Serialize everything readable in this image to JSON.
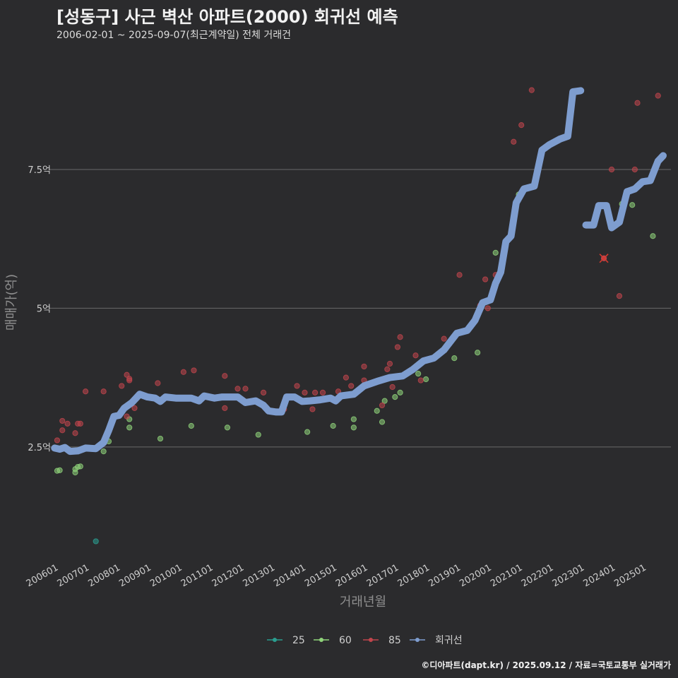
{
  "title": "[성동구] 사근 벽산 아파트(2000) 회귀선 예측",
  "subtitle": "2006-02-01 ~ 2025-09-07(최근계약일) 전체 거래건",
  "footer": "©디아파트(dapt.kr) / 2025.09.12 / 자료=국토교통부 실거래가",
  "colors": {
    "background": "#2b2b2d",
    "grid": "#6a6a6a",
    "s25": "#2a9d8f",
    "s60": "#8fd37a",
    "s85": "#c0454c",
    "regression": "#7e9dcf"
  },
  "chart_data": {
    "type": "scatter",
    "xlabel": "거래년월",
    "ylabel": "매매가(억)",
    "x_range": [
      "2005-11",
      "2025-12"
    ],
    "ylim": [
      0.5,
      9.6
    ],
    "grid": "horizontal",
    "legend_position": "bottom",
    "x_ticks": [
      "200601",
      "200701",
      "200801",
      "200901",
      "201001",
      "201101",
      "201201",
      "201301",
      "201401",
      "201501",
      "201601",
      "201701",
      "201801",
      "201901",
      "202001",
      "202101",
      "202201",
      "202301",
      "202401",
      "202501"
    ],
    "y_ticks": [
      {
        "value": 2.5,
        "label": "2.5억"
      },
      {
        "value": 5,
        "label": "5억"
      },
      {
        "value": 7.5,
        "label": "7.5억"
      }
    ],
    "legend": [
      {
        "key": "s25",
        "label": "25"
      },
      {
        "key": "s60",
        "label": "60"
      },
      {
        "key": "s85",
        "label": "85"
      },
      {
        "key": "regression",
        "label": "회귀선"
      }
    ],
    "series": [
      {
        "name": "25",
        "key": "s25",
        "points": [
          [
            "2007-05",
            0.8
          ]
        ]
      },
      {
        "name": "60",
        "key": "s60",
        "points": [
          [
            "2006-02",
            2.07
          ],
          [
            "2006-03",
            2.08
          ],
          [
            "2006-09",
            2.04
          ],
          [
            "2006-09",
            2.1
          ],
          [
            "2006-10",
            2.14
          ],
          [
            "2006-11",
            2.15
          ],
          [
            "2007-08",
            2.42
          ],
          [
            "2007-10",
            2.6
          ],
          [
            "2008-06",
            2.85
          ],
          [
            "2008-06",
            3.0
          ],
          [
            "2009-06",
            2.65
          ],
          [
            "2010-06",
            2.88
          ],
          [
            "2011-08",
            2.85
          ],
          [
            "2012-08",
            2.72
          ],
          [
            "2014-03",
            2.77
          ],
          [
            "2015-01",
            2.88
          ],
          [
            "2015-09",
            2.85
          ],
          [
            "2015-09",
            3.0
          ],
          [
            "2016-06",
            3.15
          ],
          [
            "2016-08",
            2.95
          ],
          [
            "2016-09",
            3.33
          ],
          [
            "2017-01",
            3.4
          ],
          [
            "2017-03",
            3.48
          ],
          [
            "2017-10",
            3.82
          ],
          [
            "2018-01",
            3.72
          ],
          [
            "2018-12",
            4.1
          ],
          [
            "2019-08",
            4.78
          ],
          [
            "2019-09",
            4.2
          ],
          [
            "2020-04",
            6.0
          ],
          [
            "2021-01",
            7.05
          ],
          [
            "2024-05",
            6.88
          ],
          [
            "2024-09",
            6.86
          ],
          [
            "2025-05",
            6.3
          ]
        ]
      },
      {
        "name": "85",
        "key": "s85",
        "points": [
          [
            "2006-02",
            2.62
          ],
          [
            "2006-04",
            2.8
          ],
          [
            "2006-04",
            2.97
          ],
          [
            "2006-06",
            2.92
          ],
          [
            "2006-09",
            2.75
          ],
          [
            "2006-10",
            2.92
          ],
          [
            "2006-11",
            2.92
          ],
          [
            "2007-01",
            3.5
          ],
          [
            "2007-08",
            3.5
          ],
          [
            "2008-03",
            3.6
          ],
          [
            "2008-05",
            3.05
          ],
          [
            "2008-05",
            3.8
          ],
          [
            "2008-06",
            3.7
          ],
          [
            "2008-06",
            3.73
          ],
          [
            "2008-08",
            3.2
          ],
          [
            "2009-05",
            3.65
          ],
          [
            "2010-03",
            3.85
          ],
          [
            "2010-07",
            3.88
          ],
          [
            "2011-07",
            3.78
          ],
          [
            "2011-07",
            3.2
          ],
          [
            "2011-12",
            3.55
          ],
          [
            "2012-03",
            3.55
          ],
          [
            "2012-10",
            3.48
          ],
          [
            "2013-06",
            3.18
          ],
          [
            "2013-11",
            3.6
          ],
          [
            "2014-02",
            3.48
          ],
          [
            "2014-05",
            3.18
          ],
          [
            "2014-06",
            3.48
          ],
          [
            "2014-09",
            3.48
          ],
          [
            "2015-03",
            3.5
          ],
          [
            "2015-06",
            3.75
          ],
          [
            "2015-08",
            3.6
          ],
          [
            "2016-01",
            3.7
          ],
          [
            "2016-01",
            3.95
          ],
          [
            "2016-08",
            3.25
          ],
          [
            "2016-10",
            3.9
          ],
          [
            "2016-11",
            4.0
          ],
          [
            "2016-12",
            3.58
          ],
          [
            "2017-02",
            4.3
          ],
          [
            "2017-03",
            4.48
          ],
          [
            "2017-09",
            4.15
          ],
          [
            "2017-11",
            3.7
          ],
          [
            "2018-08",
            4.45
          ],
          [
            "2019-02",
            5.6
          ],
          [
            "2019-10",
            5.05
          ],
          [
            "2019-12",
            5.52
          ],
          [
            "2020-01",
            5.0
          ],
          [
            "2020-04",
            5.6
          ],
          [
            "2020-11",
            8.0
          ],
          [
            "2021-02",
            8.3
          ],
          [
            "2021-06",
            8.93
          ],
          [
            "2023-10",
            5.9
          ],
          [
            "2024-01",
            7.5
          ],
          [
            "2024-04",
            5.22
          ],
          [
            "2024-10",
            7.5
          ],
          [
            "2024-11",
            8.7
          ],
          [
            "2025-07",
            8.83
          ]
        ]
      }
    ],
    "cancelled_marks": [
      {
        "x": "2023-10",
        "y": 5.9
      }
    ],
    "regression_segments": [
      [
        [
          "2006-01",
          2.48
        ],
        [
          "2006-03",
          2.46
        ],
        [
          "2006-05",
          2.49
        ],
        [
          "2006-07",
          2.42
        ],
        [
          "2006-10",
          2.43
        ],
        [
          "2007-01",
          2.48
        ],
        [
          "2007-05",
          2.47
        ],
        [
          "2007-08",
          2.58
        ],
        [
          "2007-10",
          2.8
        ],
        [
          "2007-12",
          3.05
        ],
        [
          "2008-02",
          3.07
        ],
        [
          "2008-04",
          3.2
        ],
        [
          "2008-07",
          3.3
        ],
        [
          "2008-10",
          3.45
        ],
        [
          "2009-01",
          3.4
        ],
        [
          "2009-04",
          3.38
        ],
        [
          "2009-06",
          3.32
        ],
        [
          "2009-08",
          3.4
        ],
        [
          "2009-12",
          3.38
        ],
        [
          "2010-06",
          3.38
        ],
        [
          "2010-09",
          3.33
        ],
        [
          "2010-11",
          3.42
        ],
        [
          "2011-03",
          3.38
        ],
        [
          "2011-06",
          3.4
        ],
        [
          "2011-12",
          3.4
        ],
        [
          "2012-03",
          3.3
        ],
        [
          "2012-07",
          3.33
        ],
        [
          "2012-10",
          3.25
        ],
        [
          "2012-12",
          3.15
        ],
        [
          "2013-03",
          3.13
        ],
        [
          "2013-05",
          3.13
        ],
        [
          "2013-07",
          3.4
        ],
        [
          "2013-10",
          3.4
        ],
        [
          "2014-01",
          3.32
        ],
        [
          "2014-04",
          3.33
        ],
        [
          "2014-08",
          3.35
        ],
        [
          "2014-12",
          3.38
        ],
        [
          "2015-02",
          3.33
        ],
        [
          "2015-04",
          3.42
        ],
        [
          "2015-09",
          3.45
        ],
        [
          "2016-01",
          3.6
        ],
        [
          "2016-06",
          3.68
        ],
        [
          "2016-11",
          3.75
        ],
        [
          "2017-04",
          3.78
        ],
        [
          "2017-08",
          3.9
        ],
        [
          "2017-12",
          4.05
        ],
        [
          "2018-04",
          4.1
        ],
        [
          "2018-08",
          4.25
        ],
        [
          "2019-01",
          4.55
        ],
        [
          "2019-05",
          4.6
        ],
        [
          "2019-08",
          4.78
        ],
        [
          "2019-11",
          5.1
        ],
        [
          "2020-02",
          5.15
        ],
        [
          "2020-04",
          5.45
        ],
        [
          "2020-06",
          5.65
        ],
        [
          "2020-08",
          6.2
        ],
        [
          "2020-10",
          6.3
        ],
        [
          "2020-12",
          6.9
        ],
        [
          "2021-03",
          7.15
        ],
        [
          "2021-07",
          7.2
        ],
        [
          "2021-10",
          7.85
        ],
        [
          "2022-01",
          7.95
        ],
        [
          "2022-05",
          8.05
        ],
        [
          "2022-08",
          8.1
        ],
        [
          "2022-10",
          8.9
        ],
        [
          "2023-01",
          8.92
        ]
      ],
      [
        [
          "2023-03",
          6.5
        ],
        [
          "2023-06",
          6.5
        ],
        [
          "2023-08",
          6.85
        ],
        [
          "2023-11",
          6.85
        ],
        [
          "2024-01",
          6.45
        ],
        [
          "2024-04",
          6.55
        ],
        [
          "2024-07",
          7.1
        ],
        [
          "2024-10",
          7.15
        ],
        [
          "2025-01",
          7.28
        ],
        [
          "2025-04",
          7.3
        ],
        [
          "2025-07",
          7.65
        ],
        [
          "2025-09",
          7.75
        ]
      ]
    ]
  }
}
